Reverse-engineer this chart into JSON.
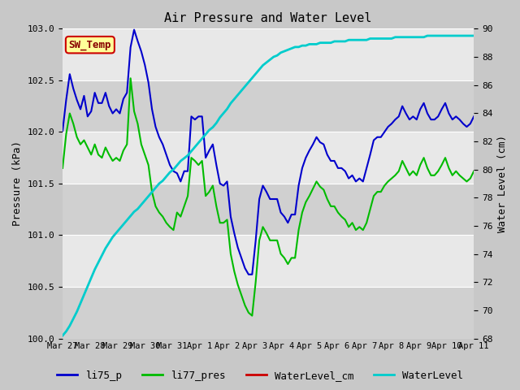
{
  "title": "Air Pressure and Water Level",
  "ylabel_left": "Pressure (kPa)",
  "ylabel_right": "Water Level (cm)",
  "ylim_left": [
    100.0,
    103.0
  ],
  "ylim_right": [
    68,
    90
  ],
  "yticks_left": [
    100.0,
    100.5,
    101.0,
    101.5,
    102.0,
    102.5,
    103.0
  ],
  "yticks_right": [
    68,
    70,
    72,
    74,
    76,
    78,
    80,
    82,
    84,
    86,
    88,
    90
  ],
  "x_labels": [
    "Mar 27",
    "Mar 28",
    "Mar 29",
    "Mar 30",
    "Mar 31",
    "Apr 1",
    "Apr 2",
    "Apr 3",
    "Apr 4",
    "Apr 5",
    "Apr 6",
    "Apr 7",
    "Apr 8",
    "Apr 9",
    "Apr 10",
    "Apr 11"
  ],
  "fig_bg": "#c8c8c8",
  "plot_bg_light": "#e8e8e8",
  "plot_bg_dark": "#d0d0d0",
  "annotation_text": "SW_Temp",
  "annotation_bg": "#ffff99",
  "annotation_border": "#cc0000",
  "annotation_text_color": "#880000",
  "legend_labels": [
    "li75_p",
    "li77_pres",
    "WaterLevel_cm",
    "WaterLevel"
  ],
  "legend_colors": [
    "#0000cc",
    "#00bb00",
    "#cc0000",
    "#00cccc"
  ],
  "li75_p": [
    102.01,
    102.31,
    102.56,
    102.42,
    102.31,
    102.22,
    102.35,
    102.15,
    102.2,
    102.38,
    102.28,
    102.28,
    102.38,
    102.25,
    102.18,
    102.22,
    102.18,
    102.32,
    102.38,
    102.82,
    102.99,
    102.88,
    102.78,
    102.65,
    102.48,
    102.22,
    102.05,
    101.95,
    101.88,
    101.78,
    101.68,
    101.62,
    101.6,
    101.52,
    101.62,
    101.62,
    102.15,
    102.12,
    102.15,
    102.15,
    101.75,
    101.82,
    101.88,
    101.68,
    101.5,
    101.48,
    101.52,
    101.18,
    101.02,
    100.88,
    100.78,
    100.68,
    100.62,
    100.62,
    100.95,
    101.35,
    101.48,
    101.42,
    101.35,
    101.35,
    101.35,
    101.22,
    101.18,
    101.12,
    101.2,
    101.2,
    101.48,
    101.65,
    101.75,
    101.82,
    101.88,
    101.95,
    101.9,
    101.88,
    101.78,
    101.72,
    101.72,
    101.65,
    101.65,
    101.62,
    101.55,
    101.58,
    101.52,
    101.55,
    101.52,
    101.65,
    101.78,
    101.92,
    101.95,
    101.95,
    102.0,
    102.05,
    102.08,
    102.12,
    102.15,
    102.25,
    102.18,
    102.12,
    102.15,
    102.12,
    102.22,
    102.28,
    102.18,
    102.12,
    102.12,
    102.15,
    102.22,
    102.28,
    102.18,
    102.12,
    102.15,
    102.12,
    102.08,
    102.05,
    102.08,
    102.15
  ],
  "li77_pres": [
    101.65,
    101.98,
    102.18,
    102.08,
    101.95,
    101.88,
    101.92,
    101.85,
    101.78,
    101.88,
    101.78,
    101.75,
    101.85,
    101.78,
    101.72,
    101.75,
    101.72,
    101.82,
    101.88,
    102.52,
    102.2,
    102.08,
    101.88,
    101.78,
    101.68,
    101.42,
    101.28,
    101.22,
    101.18,
    101.12,
    101.08,
    101.05,
    101.22,
    101.18,
    101.28,
    101.38,
    101.75,
    101.72,
    101.68,
    101.72,
    101.38,
    101.42,
    101.48,
    101.28,
    101.12,
    101.12,
    101.15,
    100.82,
    100.65,
    100.52,
    100.42,
    100.32,
    100.25,
    100.22,
    100.55,
    100.95,
    101.08,
    101.02,
    100.95,
    100.95,
    100.95,
    100.82,
    100.78,
    100.72,
    100.78,
    100.78,
    101.05,
    101.22,
    101.32,
    101.38,
    101.45,
    101.52,
    101.47,
    101.44,
    101.35,
    101.28,
    101.28,
    101.22,
    101.18,
    101.15,
    101.08,
    101.12,
    101.05,
    101.08,
    101.05,
    101.12,
    101.25,
    101.38,
    101.42,
    101.42,
    101.48,
    101.52,
    101.55,
    101.58,
    101.62,
    101.72,
    101.65,
    101.58,
    101.62,
    101.58,
    101.68,
    101.75,
    101.65,
    101.58,
    101.58,
    101.62,
    101.68,
    101.75,
    101.65,
    101.58,
    101.62,
    101.58,
    101.55,
    101.52,
    101.55,
    101.62
  ],
  "water_level": [
    68.2,
    68.5,
    68.9,
    69.4,
    69.9,
    70.5,
    71.1,
    71.7,
    72.3,
    72.9,
    73.4,
    73.9,
    74.4,
    74.8,
    75.2,
    75.5,
    75.8,
    76.1,
    76.4,
    76.7,
    77.0,
    77.2,
    77.5,
    77.8,
    78.1,
    78.4,
    78.7,
    79.0,
    79.2,
    79.5,
    79.8,
    80.0,
    80.3,
    80.6,
    80.8,
    81.0,
    81.3,
    81.6,
    81.9,
    82.2,
    82.5,
    82.8,
    83.0,
    83.3,
    83.7,
    84.0,
    84.3,
    84.7,
    85.0,
    85.3,
    85.6,
    85.9,
    86.2,
    86.5,
    86.8,
    87.1,
    87.4,
    87.6,
    87.8,
    88.0,
    88.1,
    88.3,
    88.4,
    88.5,
    88.6,
    88.7,
    88.7,
    88.8,
    88.8,
    88.9,
    88.9,
    88.9,
    89.0,
    89.0,
    89.0,
    89.0,
    89.1,
    89.1,
    89.1,
    89.1,
    89.2,
    89.2,
    89.2,
    89.2,
    89.2,
    89.2,
    89.3,
    89.3,
    89.3,
    89.3,
    89.3,
    89.3,
    89.3,
    89.4,
    89.4,
    89.4,
    89.4,
    89.4,
    89.4,
    89.4,
    89.4,
    89.4,
    89.5,
    89.5,
    89.5,
    89.5,
    89.5,
    89.5,
    89.5,
    89.5,
    89.5,
    89.5,
    89.5,
    89.5,
    89.5,
    89.5
  ]
}
